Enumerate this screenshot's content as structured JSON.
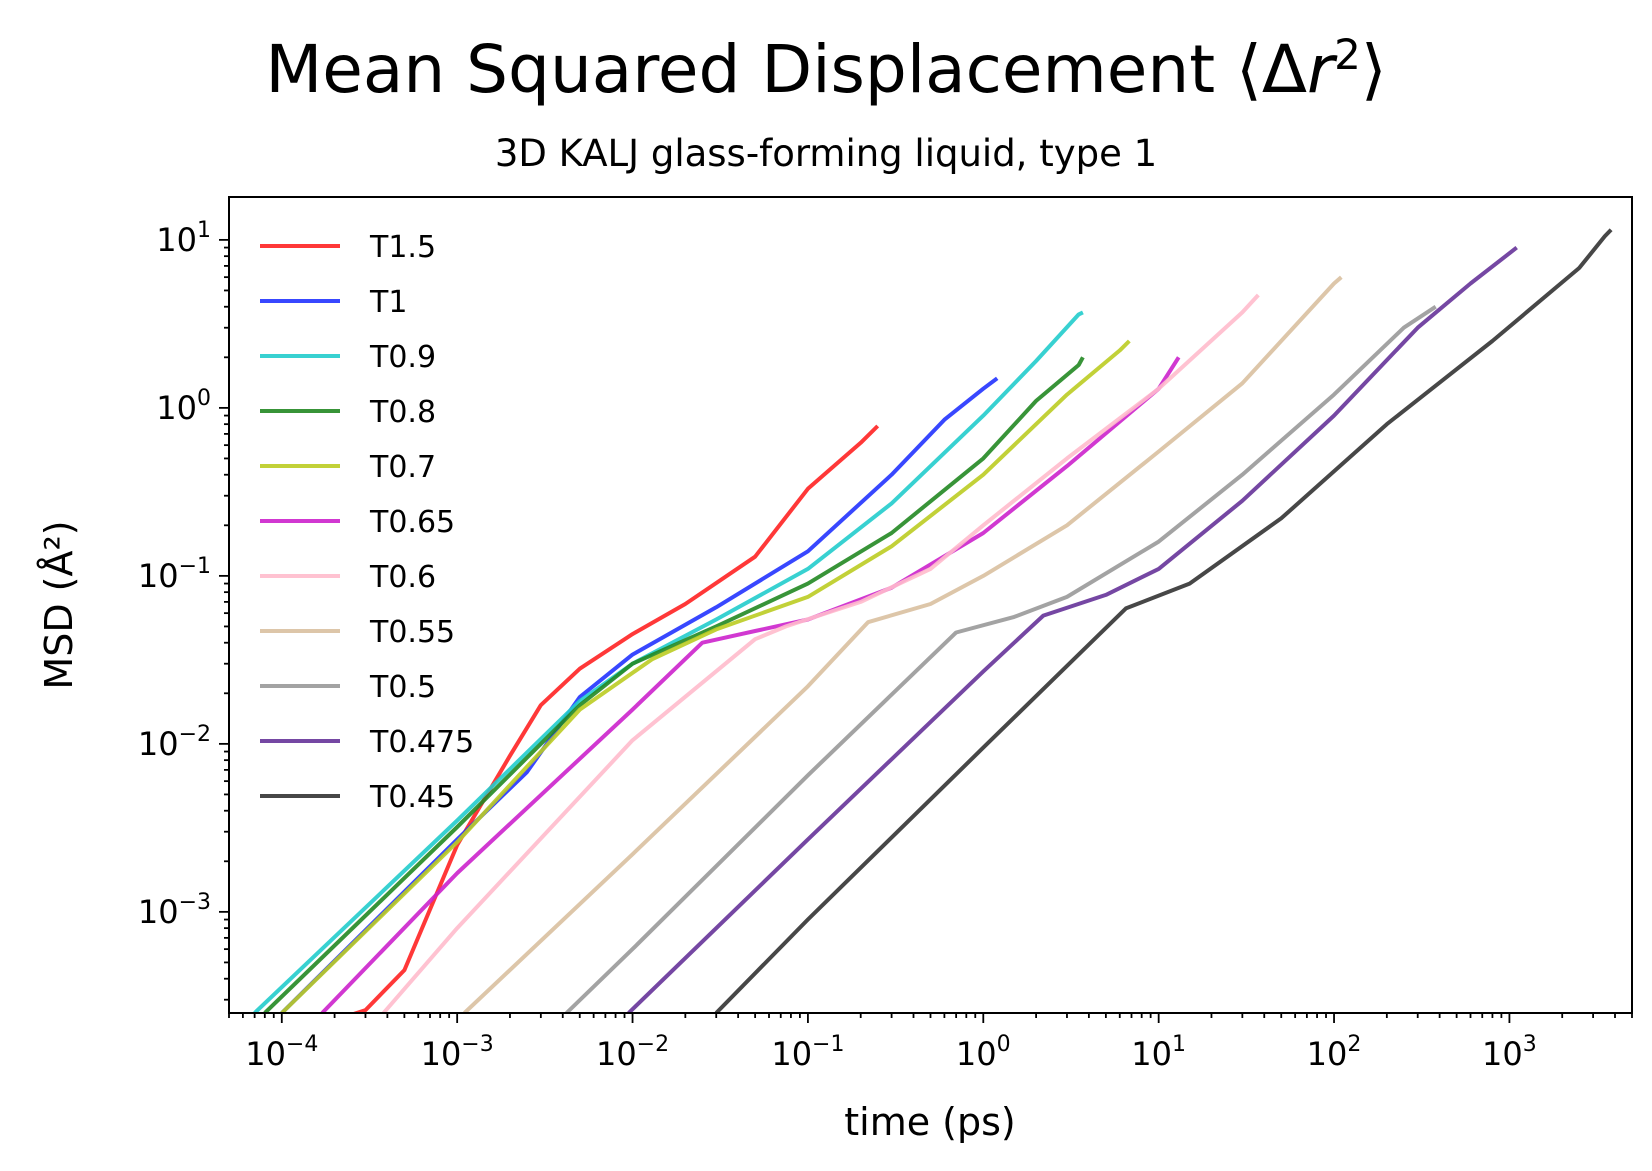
{
  "title_prefix": "Mean Squared Displacement ⟨Δ",
  "title_var": "r",
  "title_sup": "2",
  "title_suffix": "⟩",
  "chart_data": {
    "type": "line",
    "title": "Mean Squared Displacement ⟨Δr²⟩",
    "subtitle": "3D KALJ glass-forming liquid, type 1",
    "xlabel": "time (ps)",
    "ylabel": "MSD (Å²)",
    "xscale": "log",
    "yscale": "log",
    "xlim": [
      5e-05,
      5000
    ],
    "ylim": [
      0.00025,
      18
    ],
    "x_ticks": [
      {
        "value": 0.0001,
        "base": "10",
        "exp": "−4"
      },
      {
        "value": 0.001,
        "base": "10",
        "exp": "−3"
      },
      {
        "value": 0.01,
        "base": "10",
        "exp": "−2"
      },
      {
        "value": 0.1,
        "base": "10",
        "exp": "−1"
      },
      {
        "value": 1,
        "base": "10",
        "exp": "0"
      },
      {
        "value": 10,
        "base": "10",
        "exp": "1"
      },
      {
        "value": 100,
        "base": "10",
        "exp": "2"
      },
      {
        "value": 1000,
        "base": "10",
        "exp": "3"
      }
    ],
    "y_ticks": [
      {
        "value": 0.001,
        "base": "10",
        "exp": "−3"
      },
      {
        "value": 0.01,
        "base": "10",
        "exp": "−2"
      },
      {
        "value": 0.1,
        "base": "10",
        "exp": "−1"
      },
      {
        "value": 1,
        "base": "10",
        "exp": "0"
      },
      {
        "value": 10,
        "base": "10",
        "exp": "1"
      }
    ],
    "grid": false,
    "legend_position": "top-left",
    "series": [
      {
        "name": "T1.5",
        "color": "#ff2222",
        "points": [
          [
            6e-05,
            0.00015
          ],
          [
            0.0003,
            0.00026
          ],
          [
            0.0005,
            0.00045
          ],
          [
            0.001,
            0.0025
          ],
          [
            0.002,
            0.0085
          ],
          [
            0.003,
            0.017
          ],
          [
            0.005,
            0.028
          ],
          [
            0.01,
            0.045
          ],
          [
            0.02,
            0.068
          ],
          [
            0.05,
            0.13
          ],
          [
            0.1,
            0.33
          ],
          [
            0.2,
            0.62
          ],
          [
            0.25,
            0.78
          ]
        ]
      },
      {
        "name": "T1",
        "color": "#2233ff",
        "points": [
          [
            0.0001,
            0.00025
          ],
          [
            0.001,
            0.0027
          ],
          [
            0.0025,
            0.0068
          ],
          [
            0.005,
            0.019
          ],
          [
            0.01,
            0.034
          ],
          [
            0.03,
            0.065
          ],
          [
            0.1,
            0.14
          ],
          [
            0.3,
            0.4
          ],
          [
            0.6,
            0.85
          ],
          [
            1,
            1.3
          ],
          [
            1.2,
            1.5
          ]
        ]
      },
      {
        "name": "T0.9",
        "color": "#22cccc",
        "points": [
          [
            7e-05,
            0.00025
          ],
          [
            0.001,
            0.0035
          ],
          [
            0.005,
            0.018
          ],
          [
            0.01,
            0.03
          ],
          [
            0.03,
            0.055
          ],
          [
            0.1,
            0.11
          ],
          [
            0.3,
            0.27
          ],
          [
            1,
            0.9
          ],
          [
            2,
            1.9
          ],
          [
            3.5,
            3.6
          ],
          [
            3.7,
            3.7
          ]
        ]
      },
      {
        "name": "T0.8",
        "color": "#228822",
        "points": [
          [
            8e-05,
            0.00025
          ],
          [
            0.001,
            0.0032
          ],
          [
            0.005,
            0.017
          ],
          [
            0.01,
            0.03
          ],
          [
            0.03,
            0.05
          ],
          [
            0.1,
            0.09
          ],
          [
            0.3,
            0.18
          ],
          [
            1,
            0.5
          ],
          [
            2,
            1.1
          ],
          [
            3.5,
            1.8
          ],
          [
            3.7,
            2
          ]
        ]
      },
      {
        "name": "T0.7",
        "color": "#bbcc22",
        "points": [
          [
            0.0001,
            0.00025
          ],
          [
            0.001,
            0.0026
          ],
          [
            0.005,
            0.016
          ],
          [
            0.013,
            0.032
          ],
          [
            0.03,
            0.048
          ],
          [
            0.1,
            0.075
          ],
          [
            0.3,
            0.15
          ],
          [
            1,
            0.4
          ],
          [
            3,
            1.2
          ],
          [
            6,
            2.2
          ],
          [
            6.8,
            2.5
          ]
        ]
      },
      {
        "name": "T0.65",
        "color": "#cc22cc",
        "points": [
          [
            0.00017,
            0.00025
          ],
          [
            0.001,
            0.0017
          ],
          [
            0.01,
            0.016
          ],
          [
            0.025,
            0.04
          ],
          [
            0.05,
            0.047
          ],
          [
            0.1,
            0.055
          ],
          [
            0.3,
            0.085
          ],
          [
            1,
            0.18
          ],
          [
            3,
            0.45
          ],
          [
            10,
            1.3
          ],
          [
            13,
            2
          ]
        ]
      },
      {
        "name": "T0.6",
        "color": "#ffbbcc",
        "points": [
          [
            0.00038,
            0.00025
          ],
          [
            0.001,
            0.0008
          ],
          [
            0.01,
            0.0105
          ],
          [
            0.05,
            0.042
          ],
          [
            0.075,
            0.05
          ],
          [
            0.2,
            0.07
          ],
          [
            0.5,
            0.11
          ],
          [
            1,
            0.2
          ],
          [
            3,
            0.5
          ],
          [
            10,
            1.3
          ],
          [
            30,
            3.7
          ],
          [
            37,
            4.7
          ]
        ]
      },
      {
        "name": "T0.55",
        "color": "#d9c0a0",
        "points": [
          [
            0.0011,
            0.00025
          ],
          [
            0.01,
            0.0022
          ],
          [
            0.1,
            0.022
          ],
          [
            0.22,
            0.053
          ],
          [
            0.5,
            0.068
          ],
          [
            1,
            0.1
          ],
          [
            3,
            0.2
          ],
          [
            10,
            0.55
          ],
          [
            30,
            1.4
          ],
          [
            100,
            5.5
          ],
          [
            110,
            6
          ]
        ]
      },
      {
        "name": "T0.5",
        "color": "#999999",
        "points": [
          [
            0.0042,
            0.00025
          ],
          [
            0.01,
            0.0006
          ],
          [
            0.1,
            0.0065
          ],
          [
            0.7,
            0.046
          ],
          [
            1.5,
            0.057
          ],
          [
            3,
            0.075
          ],
          [
            10,
            0.16
          ],
          [
            30,
            0.4
          ],
          [
            100,
            1.2
          ],
          [
            250,
            3
          ],
          [
            380,
            4
          ]
        ]
      },
      {
        "name": "T0.475",
        "color": "#663399",
        "points": [
          [
            0.0095,
            0.00025
          ],
          [
            0.1,
            0.0027
          ],
          [
            1,
            0.027
          ],
          [
            2.2,
            0.058
          ],
          [
            5,
            0.077
          ],
          [
            10,
            0.11
          ],
          [
            30,
            0.28
          ],
          [
            100,
            0.9
          ],
          [
            300,
            3
          ],
          [
            600,
            5.5
          ],
          [
            1100,
            9
          ]
        ]
      },
      {
        "name": "T0.45",
        "color": "#333333",
        "points": [
          [
            0.03,
            0.00025
          ],
          [
            0.1,
            0.0009
          ],
          [
            1,
            0.0095
          ],
          [
            6.5,
            0.064
          ],
          [
            15,
            0.09
          ],
          [
            50,
            0.22
          ],
          [
            200,
            0.8
          ],
          [
            800,
            2.5
          ],
          [
            2500,
            6.8
          ],
          [
            3500,
            10.5
          ],
          [
            3800,
            11.5
          ]
        ]
      }
    ]
  }
}
